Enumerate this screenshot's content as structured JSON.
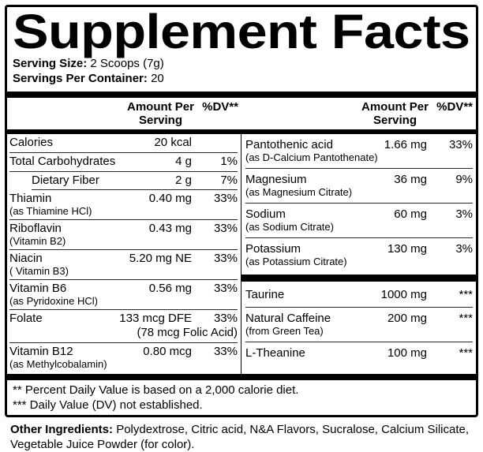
{
  "title": "Supplement Facts",
  "serving_info": {
    "serving_size_label": "Serving Size:",
    "serving_size_value": "2 Scoops (7g)",
    "servings_per_container_label": "Servings Per Container:",
    "servings_per_container_value": "20"
  },
  "column_header": {
    "amount_line1": "Amount Per",
    "amount_line2": "Serving",
    "dv_label": "%DV**"
  },
  "left_rows": [
    {
      "name": "Calories",
      "amount": "20 kcal",
      "dv": ""
    },
    {
      "name": "Total Carbohydrates",
      "amount": "4 g",
      "dv": "1%"
    },
    {
      "name": "Dietary Fiber",
      "amount": "2 g",
      "dv": "7%"
    },
    {
      "name": "Thiamin",
      "sub": "(as Thiamine HCl)",
      "amount": "0.40 mg",
      "dv": "33%"
    },
    {
      "name": "Riboflavin",
      "sub": "(Vitamin B2)",
      "amount": "0.43 mg",
      "dv": "33%"
    },
    {
      "name": "Niacin",
      "sub": "( Vitamin B3)",
      "amount": "5.20 mg NE",
      "dv": "33%"
    },
    {
      "name": "Vitamin B6",
      "sub": "(as Pyridoxine HCl)",
      "amount": "0.56 mg",
      "dv": "33%"
    },
    {
      "name": "Folate",
      "amount": "133 mcg DFE",
      "dv": "33%",
      "amount_note": "(78 mcg Folic Acid)"
    },
    {
      "name": "Vitamin B12",
      "sub": "(as Methylcobalamin)",
      "amount": "0.80 mcg",
      "dv": "33%"
    }
  ],
  "right_rows_top": [
    {
      "name": "Pantothenic acid",
      "sub": "(as D-Calcium Pantothenate)",
      "amount": "1.66 mg",
      "dv": "33%"
    },
    {
      "name": "Magnesium",
      "sub": "(as Magnesium Citrate)",
      "amount": "36 mg",
      "dv": "9%"
    },
    {
      "name": "Sodium",
      "sub": "(as Sodium Citrate)",
      "amount": "60 mg",
      "dv": "3%"
    },
    {
      "name": "Potassium",
      "sub": "(as Potassium Citrate)",
      "amount": "130 mg",
      "dv": "3%"
    }
  ],
  "right_rows_bottom": [
    {
      "name": "Taurine",
      "amount": "1000 mg",
      "dv": "***"
    },
    {
      "name": "Natural Caffeine",
      "sub": "(from Green Tea)",
      "amount": "200 mg",
      "dv": "***"
    },
    {
      "name": "L-Theanine",
      "amount": "100 mg",
      "dv": "***"
    }
  ],
  "footnotes": {
    "dv_note": "** Percent Daily Value is based on a 2,000 calorie diet.",
    "nd_note": "*** Daily Value (DV) not established."
  },
  "other_ingredients": {
    "label": "Other Ingredients:",
    "text": "Polydextrose, Citric acid, N&A Flavors, Sucralose, Calcium Silicate, Vegetable Juice Powder (for color)."
  },
  "colors": {
    "ink": "#000000",
    "paper": "#ffffff"
  }
}
